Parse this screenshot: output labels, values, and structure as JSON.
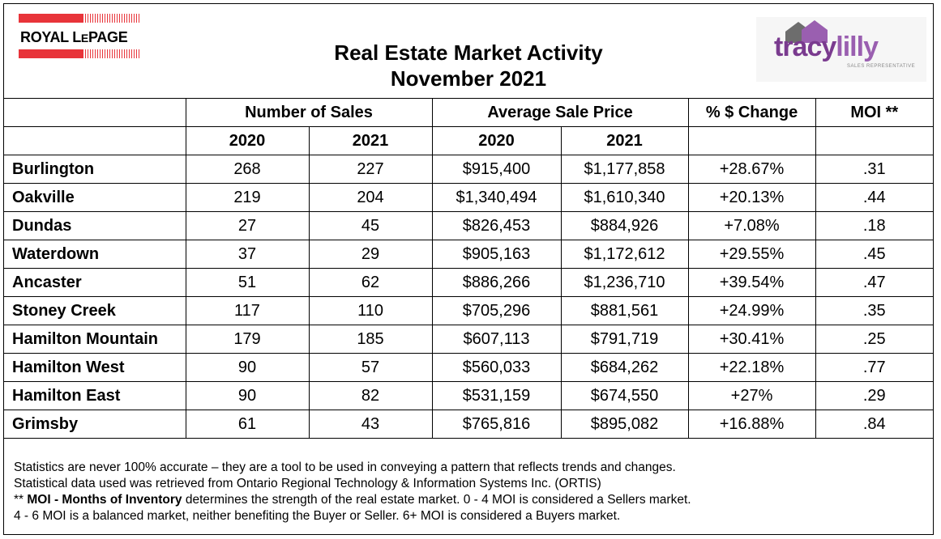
{
  "header": {
    "title_line1": "Real Estate Market Activity",
    "title_line2": "November 2021",
    "left_logo": {
      "text_royal": "ROYAL L",
      "text_e": "E",
      "text_page": "PAGE",
      "colors": {
        "brand_red": "#e8343a"
      }
    },
    "right_logo": {
      "text_tracy": "tracy",
      "text_lilly": "lilly",
      "subtitle": "SALES REPRESENTATIVE",
      "colors": {
        "purple": "#7a3b8f"
      }
    }
  },
  "table": {
    "groups": {
      "sales": "Number of Sales",
      "price": "Average Sale Price",
      "change": "% $ Change",
      "moi": "MOI **"
    },
    "years": {
      "sales_2020": "2020",
      "sales_2021": "2021",
      "price_2020": "2020",
      "price_2021": "2021"
    },
    "rows": [
      {
        "name": "Burlington",
        "s2020": "268",
        "s2021": "227",
        "p2020": "$915,400",
        "p2021": "$1,177,858",
        "change": "+28.67%",
        "moi": ".31"
      },
      {
        "name": "Oakville",
        "s2020": "219",
        "s2021": "204",
        "p2020": "$1,340,494",
        "p2021": "$1,610,340",
        "change": "+20.13%",
        "moi": ".44"
      },
      {
        "name": "Dundas",
        "s2020": "27",
        "s2021": "45",
        "p2020": "$826,453",
        "p2021": "$884,926",
        "change": "+7.08%",
        "moi": ".18"
      },
      {
        "name": "Waterdown",
        "s2020": "37",
        "s2021": "29",
        "p2020": "$905,163",
        "p2021": "$1,172,612",
        "change": "+29.55%",
        "moi": ".45"
      },
      {
        "name": "Ancaster",
        "s2020": "51",
        "s2021": "62",
        "p2020": "$886,266",
        "p2021": "$1,236,710",
        "change": "+39.54%",
        "moi": ".47"
      },
      {
        "name": "Stoney Creek",
        "s2020": "117",
        "s2021": "110",
        "p2020": "$705,296",
        "p2021": "$881,561",
        "change": "+24.99%",
        "moi": ".35"
      },
      {
        "name": "Hamilton Mountain",
        "s2020": "179",
        "s2021": "185",
        "p2020": "$607,113",
        "p2021": "$791,719",
        "change": "+30.41%",
        "moi": ".25"
      },
      {
        "name": "Hamilton West",
        "s2020": "90",
        "s2021": "57",
        "p2020": "$560,033",
        "p2021": "$684,262",
        "change": "+22.18%",
        "moi": ".77"
      },
      {
        "name": "Hamilton East",
        "s2020": "90",
        "s2021": "82",
        "p2020": "$531,159",
        "p2021": "$674,550",
        "change": "+27%",
        "moi": ".29"
      },
      {
        "name": "Grimsby",
        "s2020": "61",
        "s2021": "43",
        "p2020": "$765,816",
        "p2021": "$895,082",
        "change": "+16.88%",
        "moi": ".84"
      }
    ]
  },
  "notes": {
    "line1": "Statistics are never 100% accurate – they are a tool to be used in conveying a pattern that reflects trends and changes.",
    "line2": "Statistical data used was retrieved from Ontario Regional Technology & Information Systems Inc. (ORTIS)",
    "line3_prefix": "** ",
    "line3_bold": "MOI - Months of Inventory",
    "line3_rest": " determines the strength of the real estate market. 0 - 4 MOI is considered a Sellers market.",
    "line4": "4 - 6 MOI is a balanced market, neither benefiting the Buyer or Seller. 6+ MOI is considered a Buyers market."
  }
}
